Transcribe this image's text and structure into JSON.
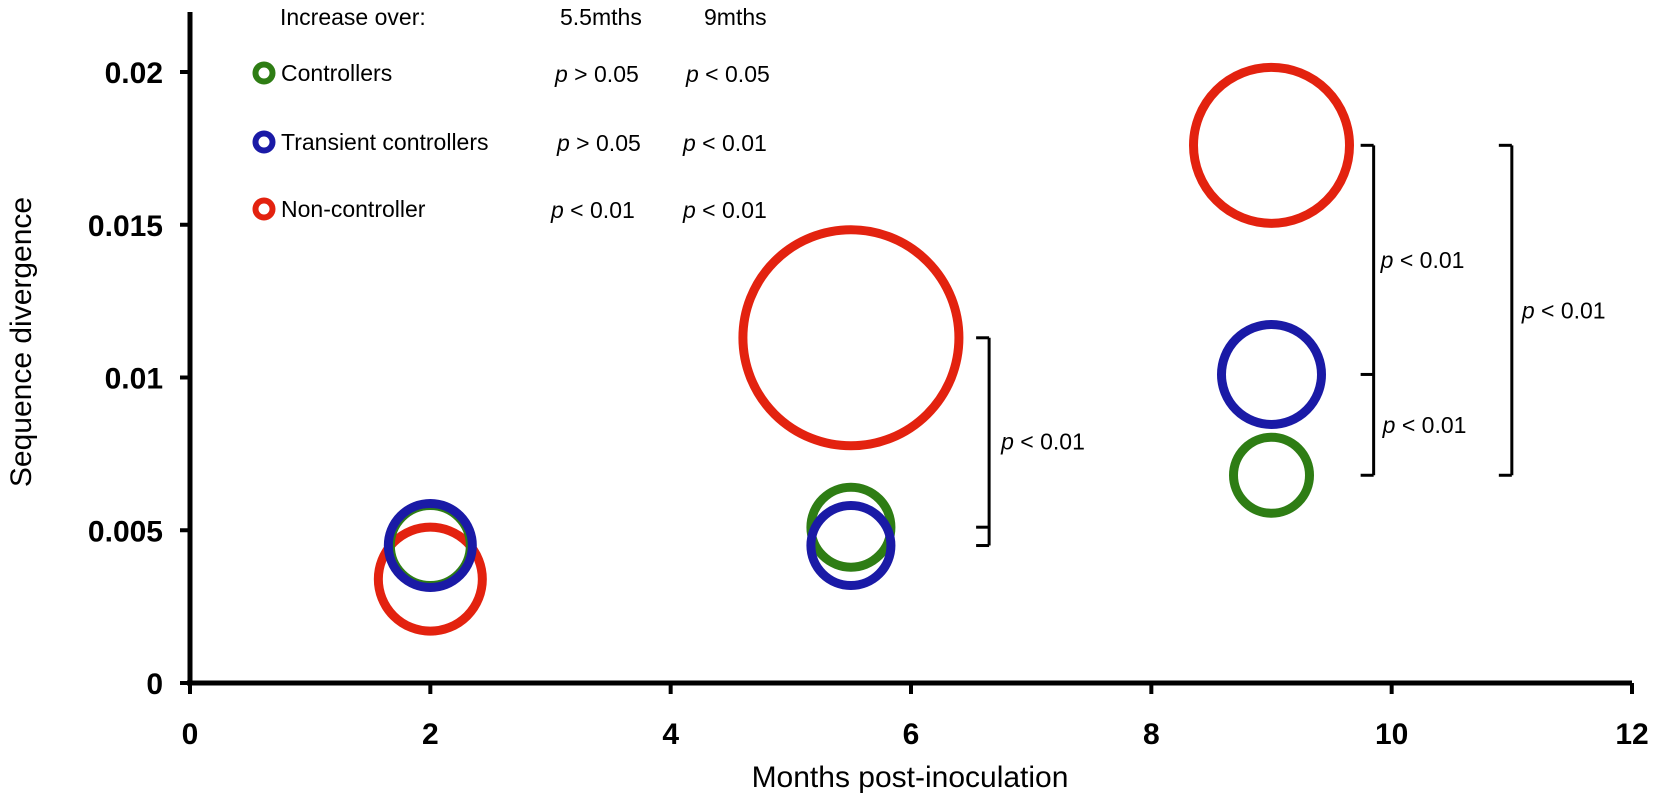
{
  "chart_data": {
    "type": "scatter",
    "xlabel": "Months post-inoculation",
    "ylabel": "Sequence divergence",
    "xlim": [
      0,
      12
    ],
    "ylim": [
      0,
      0.02
    ],
    "x_ticks": [
      0,
      2,
      4,
      6,
      8,
      10,
      12
    ],
    "x_tick_labels": [
      "0",
      "2",
      "4",
      "6",
      "8",
      "10",
      "12"
    ],
    "y_ticks": [
      0,
      0.005,
      0.01,
      0.015,
      0.02
    ],
    "y_tick_labels": [
      "0",
      "0.005",
      "0.01",
      "0.015",
      "0.02"
    ],
    "grid": false,
    "marker": "open-circle (bubble; size indicates group magnitude)",
    "series": [
      {
        "name": "Controllers",
        "color": "#2e7d14",
        "points": [
          {
            "x": 2,
            "y": 0.0045,
            "size": 1.0
          },
          {
            "x": 5.5,
            "y": 0.0051,
            "size": 1.0
          },
          {
            "x": 9,
            "y": 0.0068,
            "size": 0.95
          }
        ]
      },
      {
        "name": "Transient controllers",
        "color": "#1a1aa6",
        "points": [
          {
            "x": 2,
            "y": 0.0045,
            "size": 1.05
          },
          {
            "x": 5.5,
            "y": 0.0045,
            "size": 1.0
          },
          {
            "x": 9,
            "y": 0.0101,
            "size": 1.25
          }
        ]
      },
      {
        "name": "Non-controller",
        "color": "#e3220f",
        "points": [
          {
            "x": 2,
            "y": 0.0034,
            "size": 1.3
          },
          {
            "x": 5.5,
            "y": 0.0113,
            "size": 2.7
          },
          {
            "x": 9,
            "y": 0.0176,
            "size": 1.95
          }
        ]
      }
    ],
    "legend": {
      "placement": "top-left",
      "header": "Increase over:",
      "col_headers": [
        "5.5mths",
        "9mths"
      ],
      "rows": [
        {
          "label": "Controllers",
          "p55": "> 0.05",
          "p9": "< 0.05"
        },
        {
          "label": "Transient controllers",
          "p55": "> 0.05",
          "p9": "< 0.01"
        },
        {
          "label": "Non-controller",
          "p55": "< 0.01",
          "p9": "< 0.01"
        }
      ]
    },
    "annotations": [
      {
        "text": "< 0.01",
        "x": 6.65,
        "y_range": [
          0.0045,
          0.0113
        ],
        "tick_ys": [
          0.0051,
          0.0045
        ]
      },
      {
        "text": "< 0.01",
        "x": 9.85,
        "y_range": [
          0.0101,
          0.0176
        ]
      },
      {
        "text": "< 0.01",
        "x": 9.85,
        "y_range": [
          0.0068,
          0.0101
        ]
      },
      {
        "text": "< 0.01",
        "x": 11.0,
        "y_range": [
          0.0068,
          0.0176
        ]
      }
    ]
  }
}
